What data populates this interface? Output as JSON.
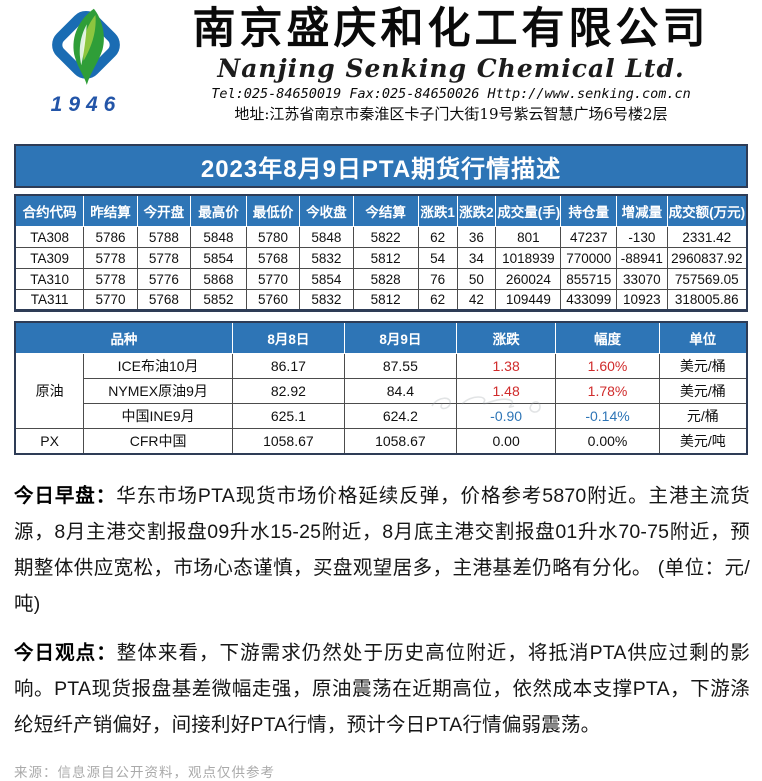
{
  "header": {
    "logo_year": "1946",
    "company_cn": "南京盛庆和化工有限公司",
    "company_en": "Nanjing Senking Chemical Ltd.",
    "contact": "Tel:025-84650019  Fax:025-84650026 Http://www.senking.com.cn",
    "address": "地址:江苏省南京市秦淮区卡子门大街19号紫云智慧广场6号楼2层"
  },
  "banner": {
    "title": "2023年8月9日PTA期货行情描述"
  },
  "futures_table": {
    "columns": [
      "合约代码",
      "昨结算",
      "今开盘",
      "最高价",
      "最低价",
      "今收盘",
      "今结算",
      "涨跌1",
      "涨跌2",
      "成交量(手)",
      "持仓量",
      "增减量",
      "成交额(万元)"
    ],
    "col_widths_pct": [
      9.4,
      7.3,
      7.3,
      7.6,
      7.3,
      7.3,
      8.9,
      5.3,
      5.3,
      8.9,
      7.6,
      6.9,
      10.9
    ],
    "rows": [
      [
        "TA308",
        "5786",
        "5788",
        "5848",
        "5780",
        "5848",
        "5822",
        "62",
        "36",
        "801",
        "47237",
        "-130",
        "2331.42"
      ],
      [
        "TA309",
        "5778",
        "5778",
        "5854",
        "5768",
        "5832",
        "5812",
        "54",
        "34",
        "1018939",
        "770000",
        "-88941",
        "2960837.92"
      ],
      [
        "TA310",
        "5778",
        "5776",
        "5868",
        "5770",
        "5854",
        "5828",
        "76",
        "50",
        "260024",
        "855715",
        "33070",
        "757569.05"
      ],
      [
        "TA311",
        "5770",
        "5768",
        "5852",
        "5760",
        "5832",
        "5812",
        "62",
        "42",
        "109449",
        "433099",
        "10923",
        "318005.86"
      ]
    ]
  },
  "upstream_table": {
    "columns": [
      "品种",
      "8月8日",
      "8月9日",
      "涨跌",
      "幅度",
      "单位"
    ],
    "col_widths_pct": [
      9.4,
      20.3,
      15.3,
      15.3,
      13.6,
      14.1,
      12.0
    ],
    "rows": [
      {
        "group": "原油",
        "name": "ICE布油10月",
        "d1": "86.17",
        "d2": "87.55",
        "chg": "1.38",
        "pct": "1.60%",
        "unit": "美元/桶",
        "trend": "up"
      },
      {
        "group": "",
        "name": "NYMEX原油9月",
        "d1": "82.92",
        "d2": "84.4",
        "chg": "1.48",
        "pct": "1.78%",
        "unit": "美元/桶",
        "trend": "up"
      },
      {
        "group": "",
        "name": "中国INE9月",
        "d1": "625.1",
        "d2": "624.2",
        "chg": "-0.90",
        "pct": "-0.14%",
        "unit": "元/桶",
        "trend": "down"
      },
      {
        "group": "PX",
        "name": "CFR中国",
        "d1": "1058.67",
        "d2": "1058.67",
        "chg": "0.00",
        "pct": "0.00%",
        "unit": "美元/吨",
        "trend": "flat"
      }
    ]
  },
  "commentary": {
    "morning_label": "今日早盘：",
    "morning_text": "华东市场PTA现货市场价格延续反弹，价格参考5870附近。主港主流货源，8月主港交割报盘09升水15-25附近，8月底主港交割报盘01升水70-75附近，预期整体供应宽松，市场心态谨慎，买盘观望居多，主港基差仍略有分化。 (单位：元/吨)",
    "view_label": "今日观点：",
    "view_text": "整体来看，下游需求仍然处于历史高位附近，将抵消PTA供应过剩的影响。PTA现货报盘基差微幅走强，原油震荡在近期高位，依然成本支撑PTA，下游涤纶短纤产销偏好，间接利好PTA行情，预计今日PTA行情偏弱震荡。"
  },
  "footer": {
    "source": "来源：信息源自公开资料，观点仅供参考"
  },
  "colors": {
    "accent_blue": "#2E75B6",
    "border_navy": "#2e3c56",
    "up_red": "#d02b2b",
    "down_blue": "#2e75b6",
    "logo_blue": "#1a6cb3",
    "logo_green_dark": "#2f9e38",
    "logo_green_light": "#8dc63f"
  }
}
